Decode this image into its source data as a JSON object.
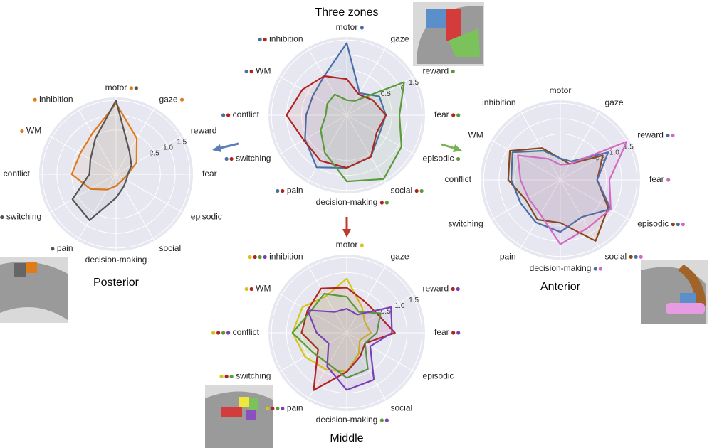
{
  "chart_data": [
    {
      "type": "radar",
      "title": "Three zones",
      "categories": [
        "motor",
        "gaze",
        "reward",
        "fear",
        "episodic",
        "social",
        "decision-making",
        "pain",
        "switching",
        "conflict",
        "WM",
        "inhibition"
      ],
      "rlim": [
        -1,
        1.6
      ],
      "rticks": [
        0.5,
        {
          "value": 1,
          "label": "1.0"
        },
        1.5
      ],
      "series": [
        {
          "color": "#4a6fa5",
          "values": [
            1.4,
            -0.15,
            0.25,
            0.3,
            0.25,
            0.6,
            0.75,
            1.0,
            0.6,
            0.35,
            0.3,
            0.5
          ],
          "marked": [
            true,
            false,
            false,
            false,
            false,
            false,
            false,
            true,
            true,
            true,
            true,
            true
          ]
        },
        {
          "color": "#b22222",
          "values": [
            0.2,
            -0.2,
            0.0,
            0.3,
            0.15,
            0.6,
            0.75,
            0.75,
            0.65,
            1.0,
            0.7,
            0.5
          ],
          "marked": [
            false,
            false,
            false,
            true,
            false,
            true,
            true,
            true,
            true,
            true,
            true,
            true
          ]
        },
        {
          "color": "#5a9a3a",
          "values": [
            -0.5,
            -0.45,
            1.2,
            0.75,
            1.1,
            1.45,
            1.2,
            0.45,
            0.0,
            -0.3,
            -0.25,
            -0.2
          ],
          "marked": [
            false,
            false,
            true,
            true,
            true,
            true,
            true,
            false,
            false,
            false,
            false,
            false
          ]
        }
      ]
    },
    {
      "type": "radar",
      "title": "Posterior",
      "categories": [
        "motor",
        "gaze",
        "reward",
        "fear",
        "episodic",
        "social",
        "decision-making",
        "pain",
        "switching",
        "conflict",
        "WM",
        "inhibition"
      ],
      "rlim": [
        -1,
        1.6
      ],
      "rticks": [
        0.5,
        {
          "value": 1,
          "label": "1.0"
        },
        1.5
      ],
      "series": [
        {
          "color": "#e07b1a",
          "values": [
            1.4,
            0.4,
            -0.2,
            -0.6,
            -0.7,
            -0.7,
            -0.6,
            -0.4,
            0.0,
            0.5,
            0.4,
            0.6
          ],
          "marked": [
            true,
            true,
            false,
            false,
            false,
            false,
            false,
            false,
            true,
            false,
            true,
            true
          ]
        },
        {
          "color": "#555555",
          "values": [
            1.5,
            -0.1,
            -0.4,
            -0.6,
            -0.6,
            -0.5,
            -0.2,
            0.8,
            0.7,
            -0.1,
            0.0,
            0.4
          ],
          "marked": [
            true,
            false,
            false,
            false,
            false,
            false,
            false,
            true,
            true,
            false,
            false,
            false
          ]
        }
      ]
    },
    {
      "type": "radar",
      "title": "Anterior",
      "categories": [
        "motor",
        "gaze",
        "reward",
        "fear",
        "episodic",
        "social",
        "decision-making",
        "pain",
        "switching",
        "conflict",
        "WM",
        "inhibition"
      ],
      "rlim": [
        -1,
        1.6
      ],
      "rticks": [
        0.5,
        {
          "value": 1,
          "label": "1.0"
        },
        1.5
      ],
      "series": [
        {
          "color": "#8b4513",
          "values": [
            -0.3,
            -0.4,
            0.6,
            0.2,
            0.8,
            1.3,
            0.4,
            0.5,
            0.3,
            0.7,
            0.9,
            0.2
          ],
          "marked": [
            false,
            false,
            false,
            false,
            true,
            true,
            false,
            false,
            false,
            false,
            false,
            false
          ]
        },
        {
          "color": "#4a6fa5",
          "values": [
            -0.3,
            -0.3,
            0.8,
            0.2,
            0.9,
            0.4,
            0.7,
            0.6,
            0.5,
            0.6,
            0.8,
            0.1
          ],
          "marked": [
            false,
            false,
            true,
            false,
            true,
            true,
            true,
            false,
            false,
            false,
            false,
            false
          ]
        },
        {
          "color": "#d36ac2",
          "values": [
            -0.5,
            -0.4,
            1.5,
            0.6,
            0.9,
            0.8,
            1.1,
            0.3,
            0.2,
            0.3,
            0.6,
            -0.2
          ],
          "marked": [
            false,
            false,
            true,
            true,
            true,
            true,
            true,
            false,
            false,
            false,
            false,
            false
          ]
        }
      ]
    },
    {
      "type": "radar",
      "title": "Middle",
      "categories": [
        "motor",
        "gaze",
        "reward",
        "fear",
        "episodic",
        "social",
        "decision-making",
        "pain",
        "switching",
        "conflict",
        "WM",
        "inhibition"
      ],
      "rlim": [
        -1,
        1.6
      ],
      "rticks": [
        0.5,
        {
          "value": 1,
          "label": "1.0"
        },
        1.5
      ],
      "series": [
        {
          "color": "#d4c619",
          "values": [
            0.8,
            0.0,
            -0.3,
            -0.2,
            -0.5,
            -0.2,
            0.3,
            0.4,
            0.6,
            0.8,
            0.7,
            0.4
          ],
          "marked": [
            true,
            false,
            false,
            false,
            false,
            false,
            false,
            true,
            true,
            true,
            true,
            true
          ]
        },
        {
          "color": "#b22222",
          "values": [
            0.5,
            0.2,
            0.2,
            0.6,
            -0.3,
            -0.1,
            0.3,
            1.2,
            0.1,
            0.5,
            0.5,
            0.7
          ],
          "marked": [
            false,
            false,
            true,
            true,
            false,
            false,
            false,
            true,
            true,
            true,
            true,
            true
          ]
        },
        {
          "color": "#5a9a3a",
          "values": [
            0.2,
            -0.2,
            0.3,
            0.0,
            -0.3,
            0.4,
            0.5,
            0.2,
            0.3,
            0.8,
            0.4,
            0.5
          ],
          "marked": [
            false,
            false,
            false,
            false,
            false,
            false,
            true,
            true,
            true,
            true,
            false,
            true
          ]
        },
        {
          "color": "#7b3fb5",
          "values": [
            -0.2,
            -0.3,
            0.7,
            0.5,
            -0.1,
            0.8,
            0.9,
            0.3,
            -0.3,
            0.0,
            0.5,
            -0.2
          ],
          "marked": [
            false,
            false,
            true,
            true,
            false,
            false,
            true,
            true,
            false,
            true,
            false,
            true
          ]
        }
      ]
    }
  ]
}
